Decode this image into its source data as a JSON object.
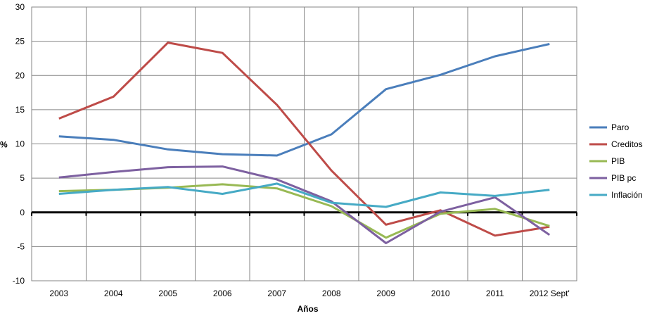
{
  "chart_data": {
    "type": "line",
    "xlabel": "Años",
    "ylabel": "%",
    "ylim": [
      -10,
      30
    ],
    "yticks": [
      30,
      25,
      20,
      15,
      10,
      5,
      0,
      -5,
      -10
    ],
    "categories": [
      "2003",
      "2004",
      "2005",
      "2006",
      "2007",
      "2008",
      "2009",
      "2010",
      "2011",
      "2012 Sept'"
    ],
    "grid": true,
    "legend_position": "right",
    "series": [
      {
        "name": "Paro",
        "color": "#4a7ebb",
        "values": [
          11.1,
          10.6,
          9.2,
          8.5,
          8.3,
          11.4,
          18.0,
          20.1,
          22.8,
          24.6
        ]
      },
      {
        "name": "Creditos",
        "color": "#be4b48",
        "values": [
          13.7,
          16.9,
          24.8,
          23.3,
          15.7,
          6.1,
          -1.8,
          0.3,
          -3.4,
          -2.1
        ]
      },
      {
        "name": "PIB",
        "color": "#98b954",
        "values": [
          3.1,
          3.3,
          3.6,
          4.1,
          3.5,
          0.9,
          -3.7,
          -0.2,
          0.5,
          -2.0
        ]
      },
      {
        "name": "PIB pc",
        "color": "#7d60a0",
        "values": [
          5.1,
          5.9,
          6.6,
          6.7,
          4.8,
          1.6,
          -4.5,
          0.1,
          2.2,
          -3.3
        ]
      },
      {
        "name": "Inflación",
        "color": "#46aac5",
        "values": [
          2.7,
          3.3,
          3.7,
          2.7,
          4.2,
          1.4,
          0.8,
          2.9,
          2.4,
          3.3
        ]
      }
    ]
  }
}
